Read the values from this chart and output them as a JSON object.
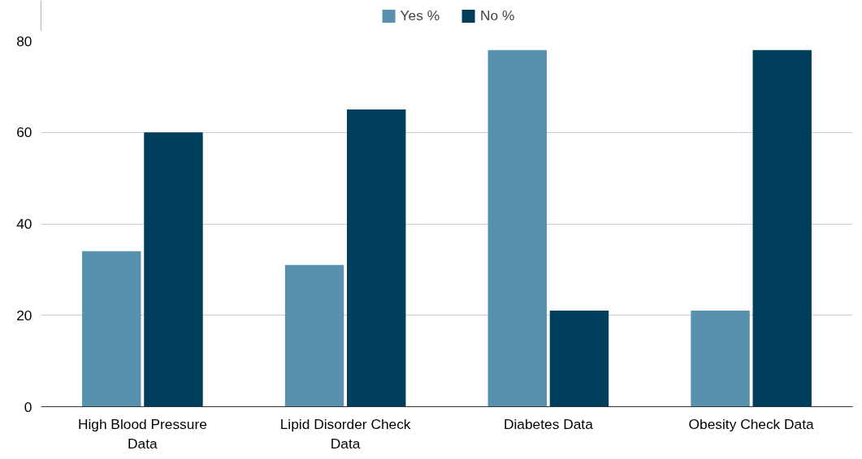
{
  "chart_data": {
    "type": "bar",
    "categories": [
      "High Blood Pressure Data",
      "Lipid Disorder Check Data",
      "Diabetes Data",
      "Obesity Check Data"
    ],
    "series": [
      {
        "name": "Yes %",
        "color": "#5791ad",
        "values": [
          34,
          31,
          78,
          21
        ]
      },
      {
        "name": "No %",
        "color": "#003f5c",
        "values": [
          60,
          65,
          21,
          78
        ]
      }
    ],
    "ylim": [
      0,
      80
    ],
    "yticks": [
      0,
      20,
      40,
      60,
      80
    ],
    "grid": "y",
    "legend": "top"
  }
}
